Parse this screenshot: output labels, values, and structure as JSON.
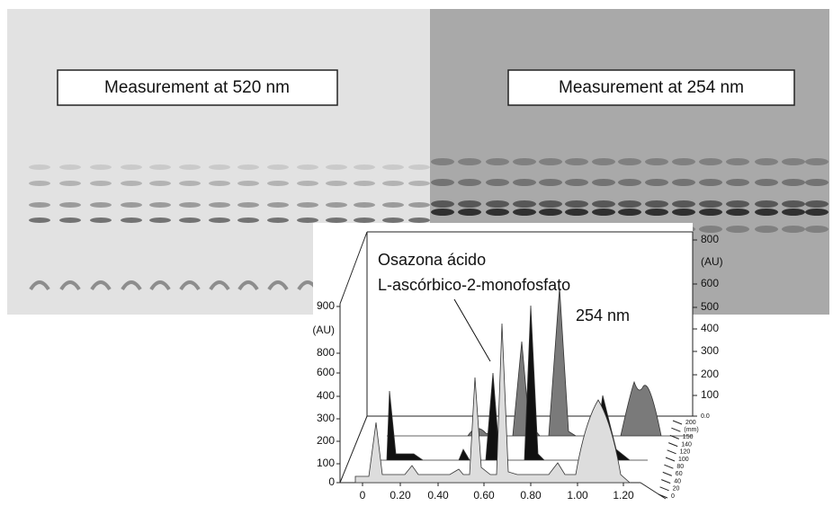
{
  "plates": [
    {
      "label": "Measurement at 520 nm"
    },
    {
      "label": "Measurement at 254 nm"
    }
  ],
  "densitogram": {
    "annotation": [
      "Osazona ácido",
      "L-ascórbico-2-monofosfato"
    ],
    "wavelength": "254 nm",
    "left_axis": [
      "900",
      "(AU)",
      "800",
      "600",
      "400",
      "300",
      "200",
      "100",
      "0"
    ],
    "right_axis": [
      "800",
      "(AU)",
      "600",
      "500",
      "400",
      "300",
      "200",
      "100",
      "0.0"
    ],
    "x_axis": [
      "0",
      "0.20",
      "0.40",
      "0.60",
      "0.80",
      "1.00",
      "1.20"
    ],
    "depth_axis": [
      "200",
      "(mm)",
      "150",
      "140",
      "120",
      "100",
      "80",
      "60",
      "40",
      "20",
      "0"
    ]
  }
}
